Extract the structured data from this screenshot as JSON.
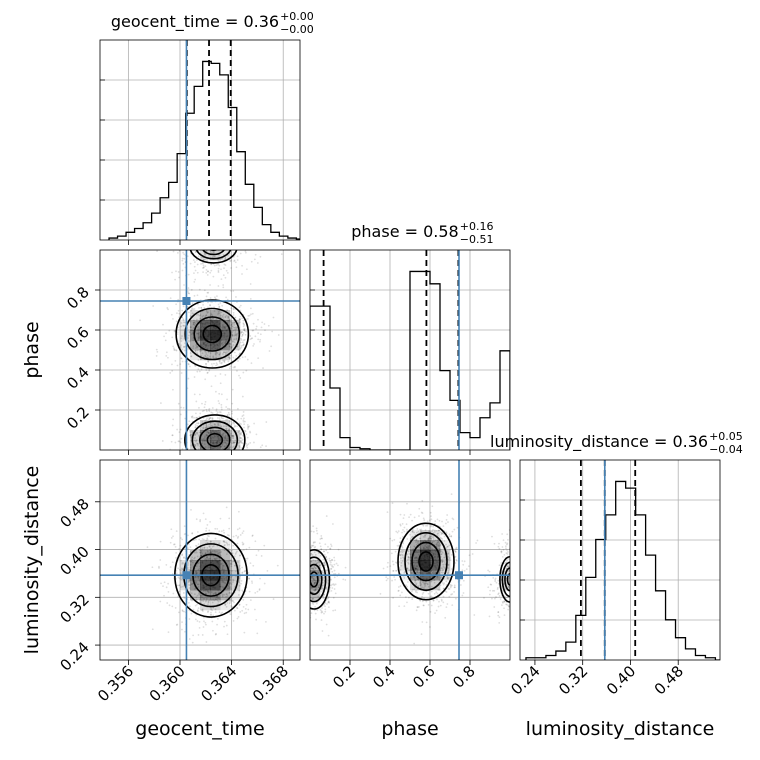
{
  "chart_data": {
    "type": "corner",
    "parameters": [
      "geocent_time",
      "phase",
      "luminosity_distance"
    ],
    "titles": [
      {
        "text": "geocent_time = 0.36",
        "plus": "+0.00",
        "minus": "−0.00"
      },
      {
        "text": "phase = 0.58",
        "plus": "+0.16",
        "minus": "−0.51"
      },
      {
        "text": "luminosity_distance = 0.36",
        "plus": "+0.05",
        "minus": "−0.04"
      }
    ],
    "axis_labels": {
      "x": [
        "geocent_time",
        "phase",
        "luminosity_distance"
      ],
      "y": [
        "phase",
        "luminosity_distance"
      ]
    },
    "ranges": {
      "geocent_time": [
        0.3538,
        0.3693
      ],
      "phase": [
        0.0,
        1.0
      ],
      "luminosity_distance": [
        0.215,
        0.55
      ]
    },
    "tick_labels": {
      "geocent_time": [
        "0.356",
        "0.360",
        "0.364",
        "0.368"
      ],
      "phase": [
        "0.2",
        "0.4",
        "0.6",
        "0.8"
      ],
      "luminosity_distance": [
        "0.24",
        "0.32",
        "0.40",
        "0.48"
      ]
    },
    "ticks": {
      "geocent_time": [
        0.356,
        0.36,
        0.364,
        0.368
      ],
      "phase": [
        0.2,
        0.4,
        0.6,
        0.8
      ],
      "luminosity_distance": [
        0.24,
        0.32,
        0.4,
        0.48
      ]
    },
    "truths": {
      "geocent_time": 0.3605,
      "phase": 0.745,
      "luminosity_distance": 0.357
    },
    "quantiles": {
      "geocent_time": [
        0.36053,
        0.36225,
        0.36393
      ],
      "phase": [
        0.068,
        0.582,
        0.742
      ],
      "luminosity_distance": [
        0.317,
        0.357,
        0.408
      ]
    },
    "histograms": {
      "geocent_time": {
        "edges_start": 0.3545,
        "bin_width": 0.00066,
        "counts": [
          1,
          2,
          4,
          6,
          9,
          14,
          22,
          30,
          45,
          66,
          80,
          93,
          92,
          86,
          69,
          46,
          29,
          17,
          8,
          4,
          2,
          1,
          0.5,
          0
        ]
      },
      "phase": {
        "edges_start": 0.0,
        "bin_width": 0.05,
        "counts": [
          58,
          58,
          25,
          5,
          1,
          0.5,
          0,
          0,
          0,
          0,
          72,
          72,
          67,
          32,
          20,
          7,
          5,
          13,
          19,
          40
        ]
      },
      "luminosity_distance": {
        "edges_start": 0.225,
        "bin_width": 0.0167,
        "counts": [
          1,
          1,
          2,
          4,
          8,
          20,
          37,
          54,
          65,
          80,
          77,
          65,
          47,
          31,
          18,
          10,
          5,
          2,
          1,
          0
        ]
      }
    },
    "grid": true
  }
}
